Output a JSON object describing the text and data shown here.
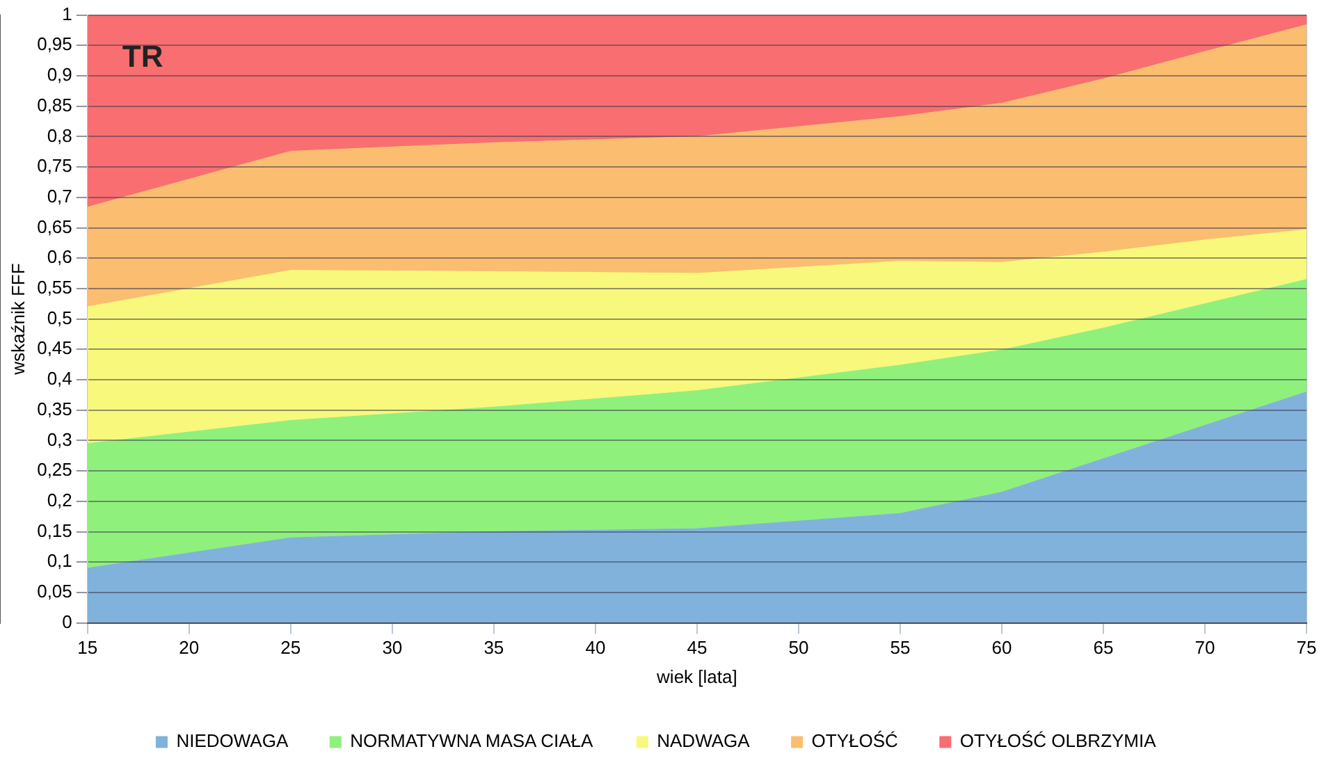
{
  "chart_data": {
    "type": "area",
    "stacked": true,
    "x": [
      15,
      25,
      35,
      45,
      55,
      60,
      65,
      70,
      75
    ],
    "series": [
      {
        "name": "NIEDOWAGA",
        "color": "#80b2dc",
        "values": [
          0.09,
          0.14,
          0.15,
          0.155,
          0.18,
          0.215,
          0.27,
          0.325,
          0.38
        ]
      },
      {
        "name": "NORMATYWNA MASA CIAŁA",
        "color": "#90f07c",
        "values": [
          0.205,
          0.193,
          0.205,
          0.227,
          0.244,
          0.234,
          0.215,
          0.2,
          0.185
        ]
      },
      {
        "name": "NADWAGA",
        "color": "#f8f87c",
        "values": [
          0.225,
          0.247,
          0.223,
          0.193,
          0.171,
          0.144,
          0.125,
          0.105,
          0.082
        ]
      },
      {
        "name": "OTYŁOŚĆ",
        "color": "#fbbd70",
        "values": [
          0.164,
          0.196,
          0.212,
          0.225,
          0.238,
          0.262,
          0.285,
          0.31,
          0.337
        ]
      },
      {
        "name": "OTYŁOŚĆ OLBRZYMIA",
        "color": "#f96e70",
        "values": [
          0.316,
          0.224,
          0.21,
          0.2,
          0.167,
          0.145,
          0.105,
          0.06,
          0.016
        ]
      }
    ],
    "xlabel": "wiek [lata]",
    "ylabel": "wskaźnik FFF",
    "xlim": [
      15,
      75
    ],
    "xticks": [
      15,
      20,
      25,
      30,
      35,
      40,
      45,
      50,
      55,
      60,
      65,
      70,
      75
    ],
    "ylim": [
      0,
      1
    ],
    "yticks": [
      0,
      {
        "value": 0.05,
        "label": "0,05"
      },
      {
        "value": 0.1,
        "label": "0,1"
      },
      {
        "value": 0.15,
        "label": "0,15"
      },
      {
        "value": 0.2,
        "label": "0,2"
      },
      {
        "value": 0.25,
        "label": "0,25"
      },
      {
        "value": 0.3,
        "label": "0,3"
      },
      {
        "value": 0.35,
        "label": "0,35"
      },
      {
        "value": 0.4,
        "label": "0,4"
      },
      {
        "value": 0.45,
        "label": "0,45"
      },
      {
        "value": 0.5,
        "label": "0,5"
      },
      {
        "value": 0.55,
        "label": "0,55"
      },
      {
        "value": 0.6,
        "label": "0,6"
      },
      {
        "value": 0.65,
        "label": "0,65"
      },
      {
        "value": 0.7,
        "label": "0,7"
      },
      {
        "value": 0.75,
        "label": "0,75"
      },
      {
        "value": 0.8,
        "label": "0,8"
      },
      {
        "value": 0.85,
        "label": "0,85"
      },
      {
        "value": 0.9,
        "label": "0,9"
      },
      {
        "value": 0.95,
        "label": "0,95"
      },
      {
        "value": 1,
        "label": "1"
      }
    ],
    "grid": true,
    "legend": "bottom",
    "marker": "none",
    "annotations": [
      "TR"
    ]
  }
}
